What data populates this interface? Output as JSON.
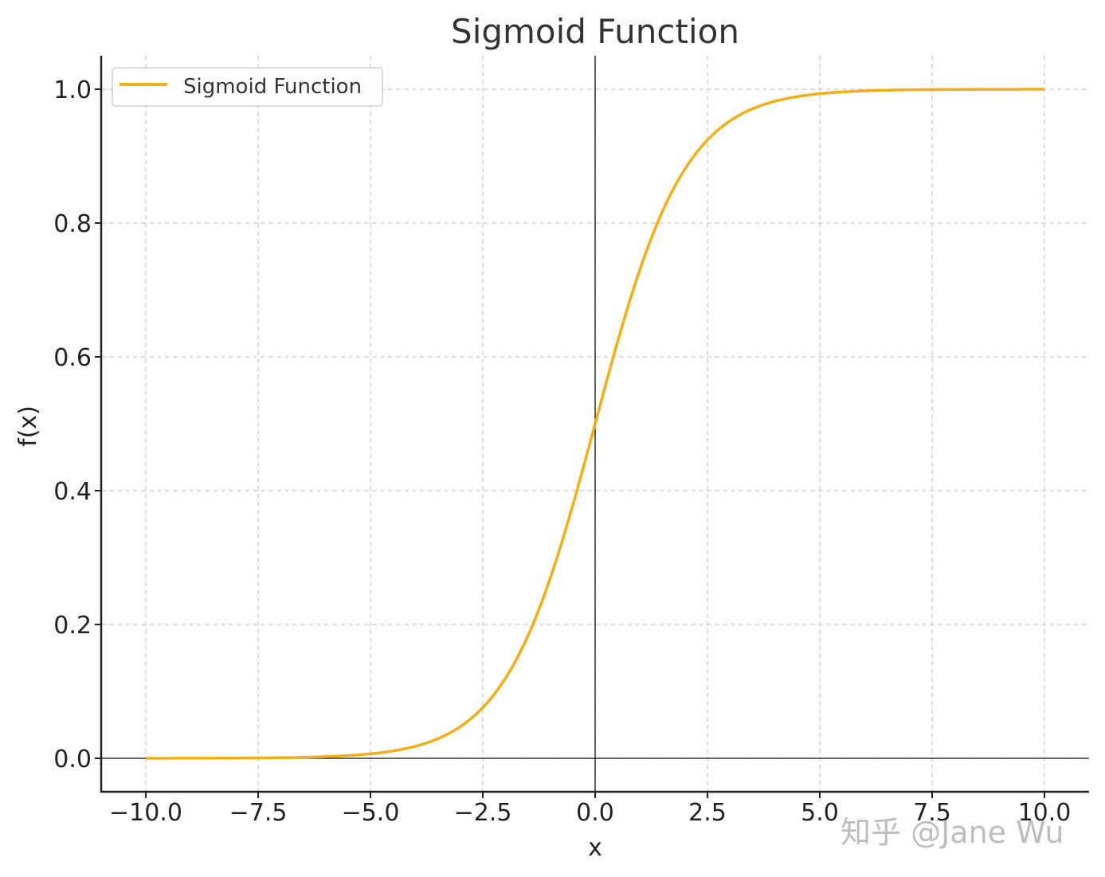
{
  "chart_data": {
    "type": "line",
    "title": "Sigmoid Function",
    "xlabel": "x",
    "ylabel": "f(x)",
    "xlim": [
      -11,
      11
    ],
    "ylim": [
      -0.05,
      1.05
    ],
    "xticks": [
      -10.0,
      -7.5,
      -5.0,
      -2.5,
      0.0,
      2.5,
      5.0,
      7.5,
      10.0
    ],
    "xtick_labels": [
      "−10.0",
      "−7.5",
      "−5.0",
      "−2.5",
      "0.0",
      "2.5",
      "5.0",
      "7.5",
      "10.0"
    ],
    "yticks": [
      0.0,
      0.2,
      0.4,
      0.6,
      0.8,
      1.0
    ],
    "ytick_labels": [
      "0.0",
      "0.2",
      "0.4",
      "0.6",
      "0.8",
      "1.0"
    ],
    "grid": true,
    "legend_position": "upper left",
    "reference_lines": {
      "x": 0,
      "y": 0
    },
    "series": [
      {
        "name": "Sigmoid Function",
        "color": "#f2ae17",
        "x": [
          -10,
          -9,
          -8,
          -7,
          -6,
          -5,
          -4,
          -3,
          -2.5,
          -2,
          -1.5,
          -1,
          -0.5,
          0,
          0.5,
          1,
          1.5,
          2,
          2.5,
          3,
          4,
          5,
          6,
          7,
          8,
          9,
          10
        ],
        "values": [
          0.0,
          0.0001,
          0.0003,
          0.0009,
          0.0025,
          0.0067,
          0.018,
          0.0474,
          0.0759,
          0.1192,
          0.1824,
          0.2689,
          0.3775,
          0.5,
          0.6225,
          0.7311,
          0.8176,
          0.8808,
          0.9241,
          0.9526,
          0.982,
          0.9933,
          0.9975,
          0.9991,
          0.9997,
          0.9999,
          1.0
        ]
      }
    ]
  },
  "watermark": "知乎 @Jane Wu"
}
